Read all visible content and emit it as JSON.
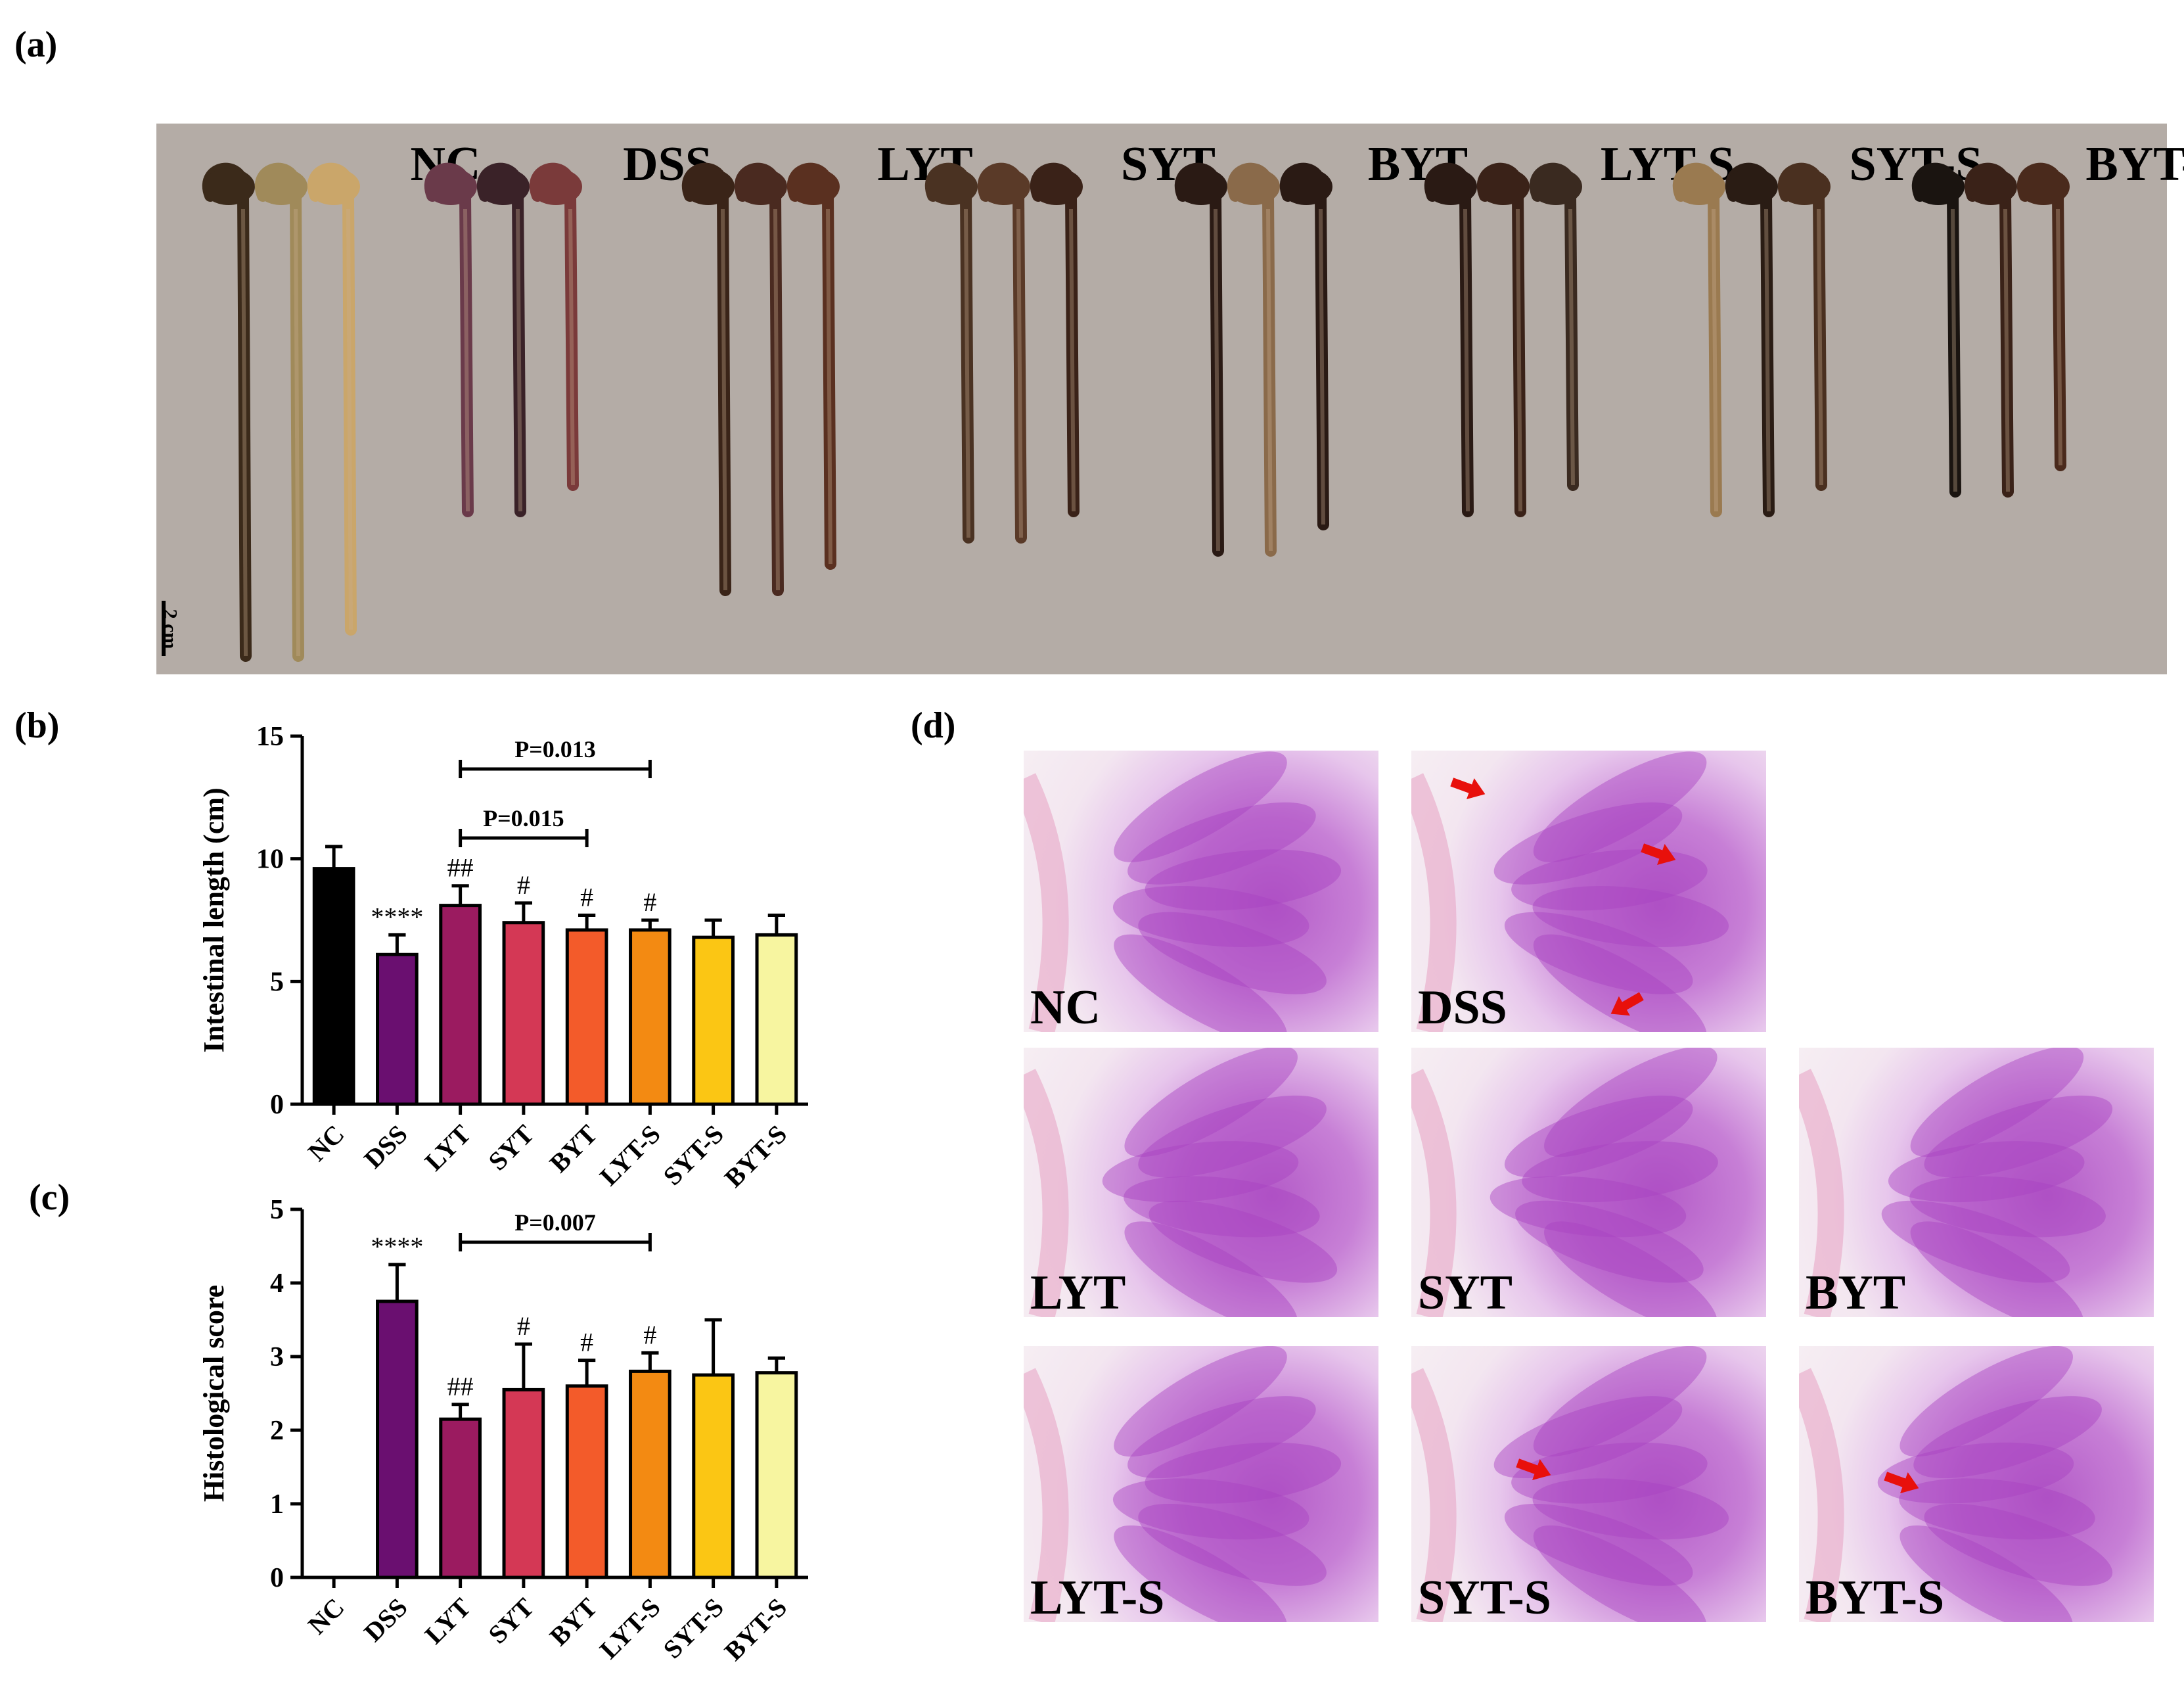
{
  "panels": {
    "a": "(a)",
    "b": "(b)",
    "c": "(c)",
    "d": "(d)"
  },
  "photo": {
    "groups": [
      "NC",
      "DSS",
      "LYT",
      "SYT",
      "BYT",
      "LYT-S",
      "SYT-S",
      "BYT-S"
    ],
    "scale_label": "2 cm",
    "background": "#b4aca6"
  },
  "colors": {
    "NC": "#000000",
    "DSS": "#6a0f70",
    "LYT": "#9b1b60",
    "SYT": "#d43855",
    "BYT": "#f35b2a",
    "LYT-S": "#f38a12",
    "SYT-S": "#fbc614",
    "BYT-S": "#f7f5a0",
    "arrow": "#e8100c"
  },
  "chart_data": [
    {
      "type": "bar",
      "panel": "(b)",
      "categories": [
        "NC",
        "DSS",
        "LYT",
        "SYT",
        "BYT",
        "LYT-S",
        "SYT-S",
        "BYT-S"
      ],
      "values": [
        9.6,
        6.1,
        8.1,
        7.4,
        7.1,
        7.1,
        6.8,
        6.9
      ],
      "errors": [
        0.9,
        0.8,
        0.8,
        0.8,
        0.6,
        0.4,
        0.7,
        0.8
      ],
      "annotations": [
        "",
        "****",
        "##",
        "#",
        "#",
        "#",
        "",
        ""
      ],
      "brackets": [
        {
          "from": "LYT",
          "to": "LYT-S",
          "label": "P=0.013"
        },
        {
          "from": "LYT",
          "to": "BYT",
          "label": "P=0.015"
        }
      ],
      "ylabel": "Intestinal length (cm)",
      "ylim": [
        0,
        15
      ],
      "yticks": [
        0,
        5,
        10,
        15
      ]
    },
    {
      "type": "bar",
      "panel": "(c)",
      "categories": [
        "NC",
        "DSS",
        "LYT",
        "SYT",
        "BYT",
        "LYT-S",
        "SYT-S",
        "BYT-S"
      ],
      "values": [
        0,
        3.75,
        2.15,
        2.55,
        2.6,
        2.8,
        2.75,
        2.78
      ],
      "errors": [
        0,
        0.5,
        0.2,
        0.62,
        0.35,
        0.25,
        0.75,
        0.2
      ],
      "annotations": [
        "",
        "****",
        "##",
        "#",
        "#",
        "#",
        "",
        ""
      ],
      "brackets": [
        {
          "from": "LYT",
          "to": "LYT-S",
          "label": "P=0.007"
        }
      ],
      "ylabel": "Histological score",
      "ylim": [
        0,
        5
      ],
      "yticks": [
        0,
        1,
        2,
        3,
        4,
        5
      ]
    }
  ],
  "micrographs": [
    "NC",
    "DSS",
    "LYT",
    "SYT",
    "BYT",
    "LYT-S",
    "SYT-S",
    "BYT-S"
  ]
}
